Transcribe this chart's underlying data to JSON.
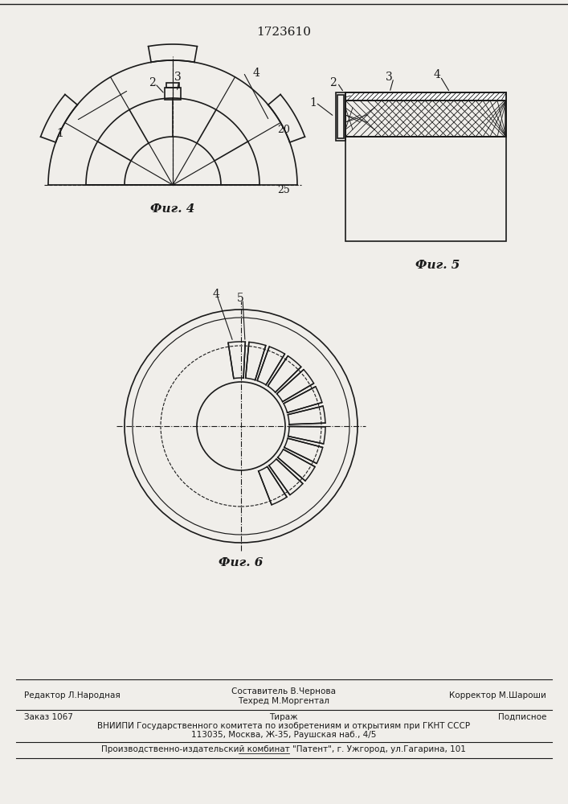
{
  "title": "1723610",
  "bg_color": "#f0eeea",
  "line_color": "#1a1a1a",
  "fig4_label": "Фиг. 4",
  "fig5_label": "Фиг. 5",
  "fig6_label": "Фиг. 6",
  "footer_line1_left": "Редактор Л.Народная",
  "footer_line1_center": "Составитель В.Чернова\nТехред М.Моргентал",
  "footer_line1_right": "Корректор М.Шароши",
  "footer_line2_left": "Заказ 1067",
  "footer_line2_center": "Тираж",
  "footer_line2_right": "Подписное",
  "footer_line3": "ВНИИПИ Государственного комитета по изобретениям и открытиям при ГКНТ СССР",
  "footer_line4": "113035, Москва, Ж-35, Раушская наб., 4/5",
  "footer_line5": "Производственно-издательский комбинат \"Патент\", г. Ужгород, ул.Гагарина, 101"
}
